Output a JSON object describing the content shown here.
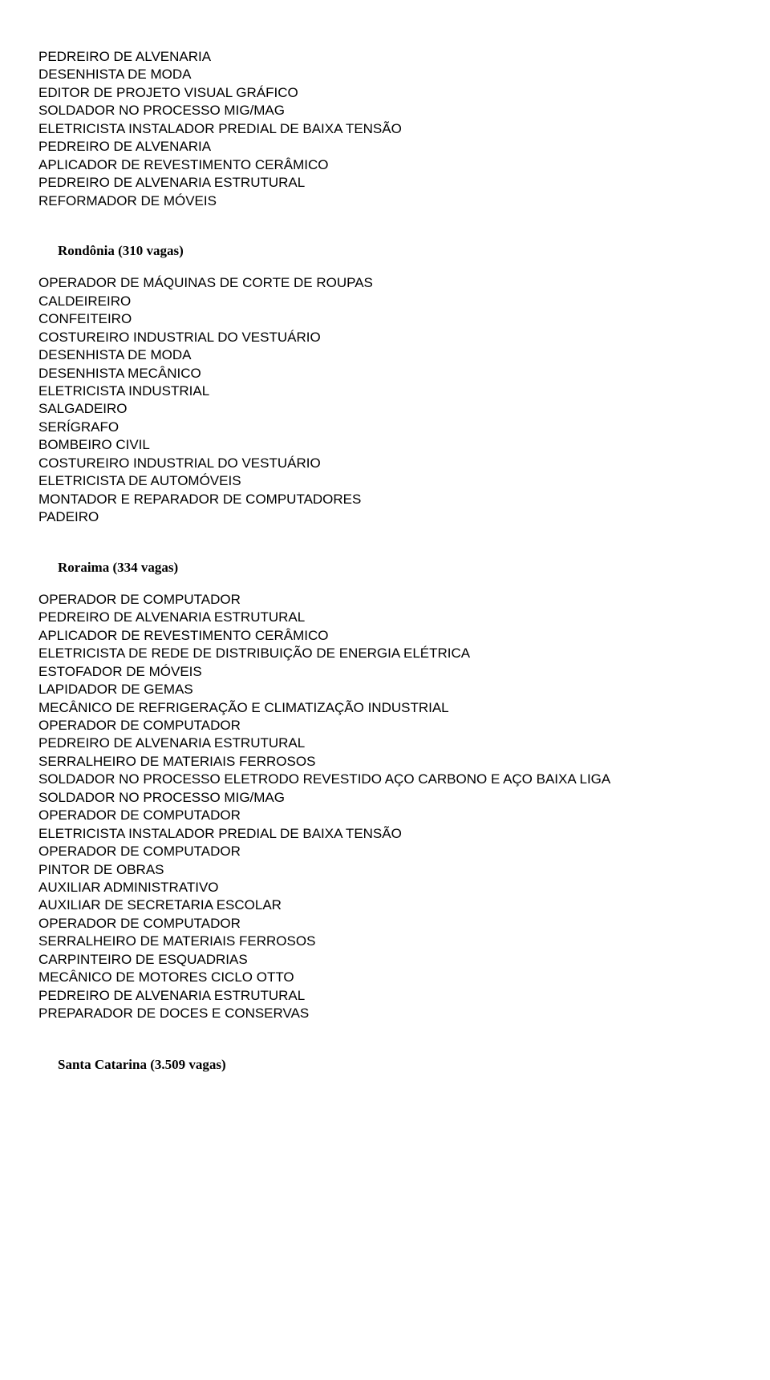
{
  "blocks": [
    {
      "type": "list",
      "items": [
        "PEDREIRO DE ALVENARIA",
        "DESENHISTA DE MODA",
        "EDITOR DE PROJETO VISUAL GRÁFICO",
        "SOLDADOR NO PROCESSO MIG/MAG",
        "ELETRICISTA INSTALADOR PREDIAL DE BAIXA TENSÃO",
        "PEDREIRO DE ALVENARIA",
        "APLICADOR DE REVESTIMENTO CERÂMICO",
        "PEDREIRO DE ALVENARIA ESTRUTURAL",
        "REFORMADOR DE MÓVEIS"
      ]
    },
    {
      "type": "section",
      "heading": "Rondônia (310 vagas)",
      "items": [
        "OPERADOR DE MÁQUINAS DE CORTE DE ROUPAS",
        "CALDEIREIRO",
        "CONFEITEIRO",
        "COSTUREIRO INDUSTRIAL DO VESTUÁRIO",
        "DESENHISTA DE MODA",
        "DESENHISTA MECÂNICO",
        "ELETRICISTA INDUSTRIAL",
        "SALGADEIRO",
        "SERÍGRAFO",
        "BOMBEIRO CIVIL",
        "COSTUREIRO INDUSTRIAL DO VESTUÁRIO",
        "ELETRICISTA DE AUTOMÓVEIS",
        "MONTADOR E REPARADOR DE COMPUTADORES",
        "PADEIRO"
      ]
    },
    {
      "type": "section",
      "heading": "Roraima (334 vagas)",
      "items": [
        "OPERADOR DE COMPUTADOR",
        "PEDREIRO DE ALVENARIA ESTRUTURAL",
        "APLICADOR DE REVESTIMENTO CERÂMICO",
        "ELETRICISTA DE REDE DE DISTRIBUIÇÃO DE ENERGIA ELÉTRICA",
        "ESTOFADOR DE MÓVEIS",
        "LAPIDADOR DE GEMAS",
        "MECÂNICO DE REFRIGERAÇÃO E CLIMATIZAÇÃO INDUSTRIAL",
        "OPERADOR DE COMPUTADOR",
        "PEDREIRO DE ALVENARIA ESTRUTURAL",
        "SERRALHEIRO DE MATERIAIS FERROSOS",
        "SOLDADOR NO PROCESSO ELETRODO REVESTIDO AÇO CARBONO E AÇO BAIXA LIGA",
        "SOLDADOR NO PROCESSO MIG/MAG",
        "OPERADOR DE COMPUTADOR",
        "ELETRICISTA INSTALADOR PREDIAL DE BAIXA TENSÃO",
        "OPERADOR DE COMPUTADOR",
        "PINTOR DE OBRAS",
        "AUXILIAR ADMINISTRATIVO",
        "AUXILIAR DE SECRETARIA ESCOLAR",
        "OPERADOR DE COMPUTADOR",
        "SERRALHEIRO DE MATERIAIS FERROSOS",
        "CARPINTEIRO DE ESQUADRIAS",
        "MECÂNICO DE MOTORES CICLO OTTO",
        "PEDREIRO DE ALVENARIA ESTRUTURAL",
        "PREPARADOR DE DOCES E CONSERVAS"
      ]
    },
    {
      "type": "heading-only",
      "heading": "Santa Catarina (3.509 vagas)"
    }
  ]
}
